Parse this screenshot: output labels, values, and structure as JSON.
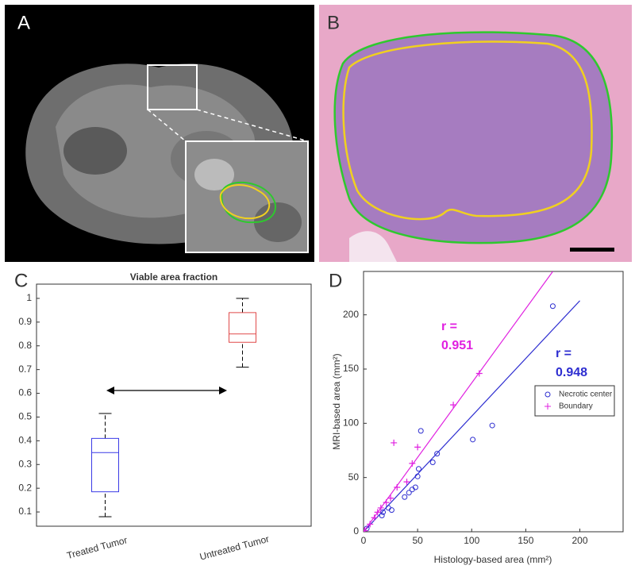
{
  "panel_labels": [
    "A",
    "B",
    "C",
    "D"
  ],
  "chart_data": [
    {
      "type": "box",
      "title": "Viable area fraction",
      "categories": [
        "Treated Tumor",
        "Untreated Tumor"
      ],
      "boxes": [
        {
          "color": "#3a3ae6",
          "min": 0.08,
          "q1": 0.185,
          "median": 0.35,
          "q3": 0.41,
          "max": 0.515
        },
        {
          "color": "#e04a4a",
          "min": 0.71,
          "q1": 0.815,
          "median": 0.85,
          "q3": 0.94,
          "max": 1
        }
      ],
      "ylim": [
        0.04,
        1.06
      ],
      "yticks": [
        0.1,
        0.2,
        0.3,
        0.4,
        0.5,
        0.6,
        0.7,
        0.8,
        0.9,
        1
      ]
    },
    {
      "type": "scatter",
      "xlabel": "Histology-based area (mm²)",
      "ylabel": "MRI-based area (mm²)",
      "xlim": [
        0,
        240
      ],
      "ylim": [
        0,
        240
      ],
      "xticks": [
        0,
        50,
        100,
        150,
        200
      ],
      "yticks": [
        0,
        50,
        100,
        150,
        200
      ],
      "legend": "right",
      "series": [
        {
          "name": "Necrotic center",
          "color": "#2d2dd0",
          "marker": "o",
          "x": [
            3,
            17,
            18,
            23,
            26,
            38,
            42,
            45,
            48,
            50,
            51,
            53,
            64,
            68,
            101,
            119,
            175
          ],
          "values": [
            3,
            15,
            18,
            22,
            20,
            32,
            36,
            39,
            41,
            51,
            58,
            93,
            64,
            72,
            85,
            98,
            208
          ],
          "fit_x": [
            0,
            200
          ],
          "fit_y": [
            0,
            213
          ],
          "r_label": [
            "r =",
            "0.948"
          ]
        },
        {
          "name": "Boundary",
          "color": "#e020e0",
          "marker": "+",
          "x": [
            1,
            6,
            10,
            13,
            16,
            21,
            25,
            28,
            31,
            40,
            45,
            50,
            83,
            107
          ],
          "values": [
            1,
            7,
            13,
            18,
            22,
            27,
            31,
            82,
            41,
            46,
            63,
            78,
            117,
            146
          ],
          "fit_x": [
            0,
            175
          ],
          "fit_y": [
            0,
            240
          ],
          "r_label": [
            "r =",
            "0.951"
          ]
        }
      ]
    }
  ]
}
